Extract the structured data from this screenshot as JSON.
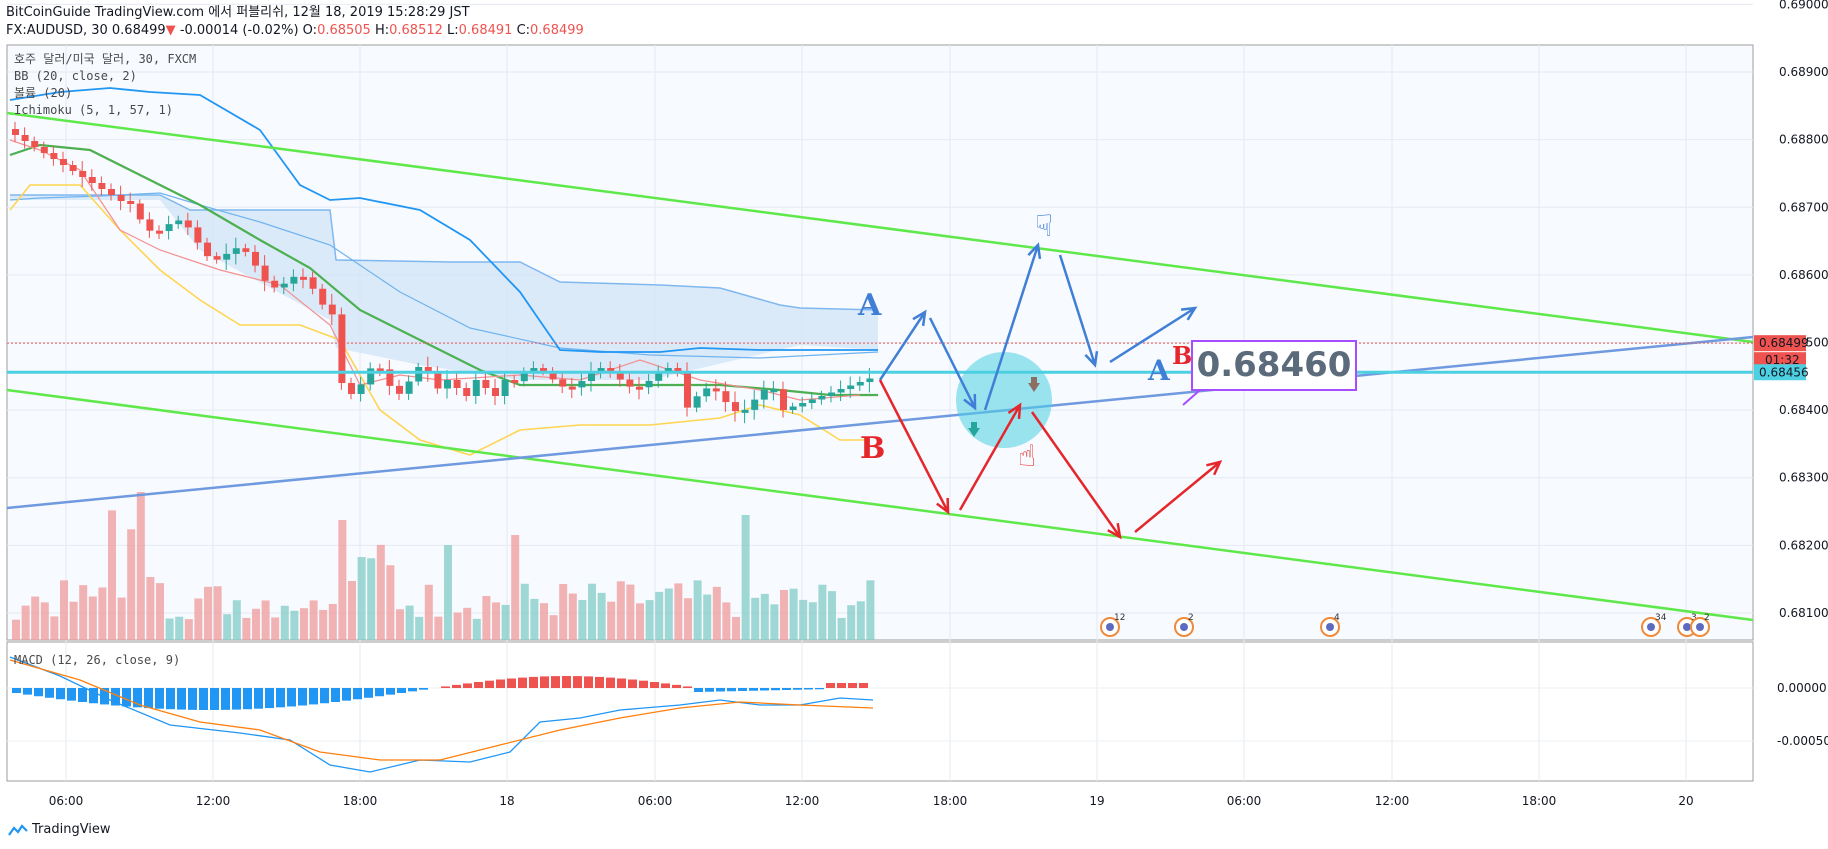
{
  "header": {
    "line1": "BitCoinGuide TradingView.com 에서 퍼블리쉬, 12월 18, 2019 15:28:29 JST",
    "symbol": "FX:AUDUSD, 30",
    "last": "0.68499",
    "change": "-0.00014 (-0.02%)",
    "o_label": "O:",
    "o": "0.68505",
    "h_label": "H:",
    "h": "0.68512",
    "l_label": "L:",
    "l": "0.68491",
    "c_label": "C:",
    "c": "0.68499"
  },
  "legend": {
    "main": "호주 달러/미국 달러, 30, FXCM",
    "bb": "BB (20, close, 2)",
    "vol": "볼륨 (20)",
    "ichimoku": "Ichimoku (5, 1, 57, 1)",
    "macd": "MACD (12, 26, close, 9)"
  },
  "footer": {
    "brand": "TradingView"
  },
  "colors": {
    "up": "#26a69a",
    "down": "#ef5350",
    "bb": "#2196f3",
    "ma": "#4caf50",
    "green_line": "#5ee84a",
    "blue_line": "#6f9ae0",
    "cyan": "#4dd0e1",
    "arrow_blue": "#3f7fd6",
    "arrow_red": "#e5262a"
  },
  "annotations": {
    "A": "A",
    "B": "B",
    "AB_A": "A",
    "AB_B": "B",
    "callout": "0.68460"
  },
  "price_tags": {
    "last": "0.68499",
    "countdown": "01:32",
    "level": "0.68456"
  },
  "events": [
    "12",
    "2",
    "4",
    "34",
    "3",
    "2"
  ],
  "chart_data": {
    "type": "candlestick",
    "title": "호주 달러/미국 달러, 30, FXCM",
    "ylim": [
      0.6806,
      0.6894
    ],
    "y_ticks": [
      "0.69000",
      "0.68900",
      "0.68800",
      "0.68700",
      "0.68600",
      "0.68500",
      "0.68400",
      "0.68300",
      "0.68200",
      "0.68100"
    ],
    "x_ticks": [
      "06:00",
      "12:00",
      "18:00",
      "18",
      "06:00",
      "12:00",
      "18:00",
      "19",
      "06:00",
      "12:00",
      "18:00",
      "20"
    ],
    "macd_ticks": [
      "0.00000",
      "-0.00050"
    ],
    "last_price": 0.68499,
    "level_price": 0.68456,
    "grid": true
  }
}
